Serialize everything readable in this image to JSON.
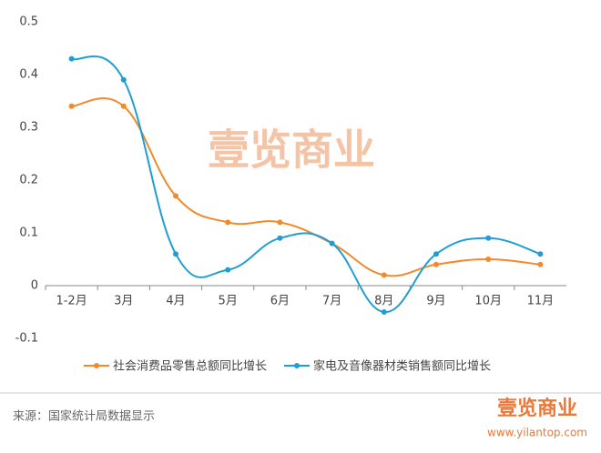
{
  "chart_data": {
    "type": "line",
    "categories": [
      "1-2月",
      "3月",
      "4月",
      "5月",
      "6月",
      "7月",
      "8月",
      "9月",
      "10月",
      "11月"
    ],
    "series": [
      {
        "name": "社会消费品零售总额同比增长",
        "color": "#f08a2c",
        "values": [
          0.34,
          0.34,
          0.17,
          0.12,
          0.12,
          0.08,
          0.02,
          0.04,
          0.05,
          0.04
        ]
      },
      {
        "name": "家电及音像器材类销售额同比增长",
        "color": "#1f9ed6",
        "values": [
          0.43,
          0.39,
          0.06,
          0.03,
          0.09,
          0.08,
          -0.05,
          0.06,
          0.09,
          0.06
        ]
      }
    ],
    "ylim": [
      -0.1,
      0.5
    ],
    "yticks": [
      0.5,
      0.4,
      0.3,
      0.2,
      0.1,
      0,
      -0.1
    ],
    "grid": false,
    "legend": "bottom",
    "watermark": "壹览商业"
  },
  "footer": {
    "source": "来源：国家统计局数据显示",
    "logo": "壹览商业",
    "url": "www.yilantop.com"
  }
}
